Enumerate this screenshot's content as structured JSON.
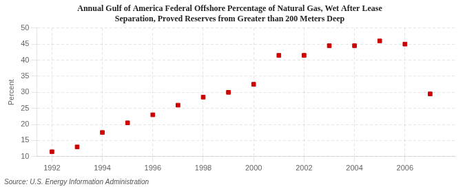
{
  "chart_data": {
    "type": "scatter",
    "title": "Annual Gulf of America Federal Offshore Percentage of Natural Gas, Wet After Lease\nSeparation, Proved Reserves from Greater than 200 Meters Deep",
    "ylabel": "Percent",
    "annotation": "Source: U.S. Energy Information Administration",
    "x": [
      1992,
      1993,
      1994,
      1995,
      1996,
      1997,
      1998,
      1999,
      2000,
      2001,
      2002,
      2003,
      2004,
      2005,
      2006,
      2007
    ],
    "values": [
      11.5,
      13.0,
      17.5,
      20.5,
      23.0,
      26.0,
      28.5,
      30.0,
      32.5,
      41.5,
      41.5,
      44.5,
      44.5,
      46.0,
      45.0,
      29.5
    ],
    "color": "#cc0000",
    "marker": "square",
    "xlim": [
      1991.4,
      2008.0
    ],
    "xticks": [
      1992,
      1994,
      1996,
      1998,
      2000,
      2002,
      2004,
      2006
    ],
    "ylim": [
      10,
      50
    ],
    "yticks": [
      10,
      15,
      20,
      25,
      30,
      35,
      40,
      45,
      50
    ],
    "grid": true
  }
}
